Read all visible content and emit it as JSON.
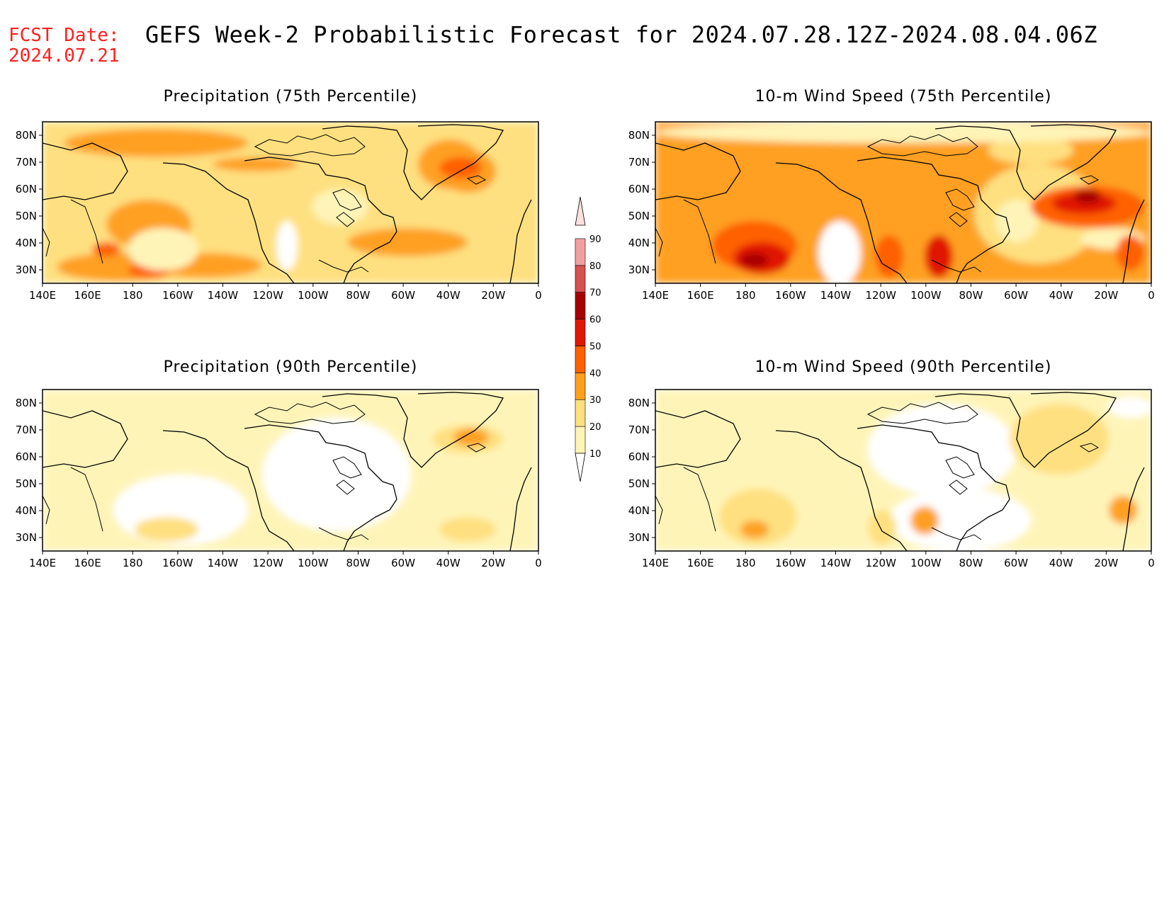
{
  "header": {
    "fcst_label": "FCST Date:",
    "fcst_date": "2024.07.21",
    "title": "GEFS Week-2 Probabilistic Forecast for 2024.07.28.12Z-2024.08.04.06Z"
  },
  "map_axes": {
    "lon_labels": [
      "140E",
      "160E",
      "180",
      "160W",
      "140W",
      "120W",
      "100W",
      "80W",
      "60W",
      "40W",
      "20W",
      "0"
    ],
    "lat_labels": [
      "30N",
      "40N",
      "50N",
      "60N",
      "70N",
      "80N"
    ]
  },
  "panels": [
    {
      "id": "p75",
      "title": "Precipitation (75th Percentile)"
    },
    {
      "id": "w75",
      "title": "10-m Wind Speed (75th Percentile)"
    },
    {
      "id": "p90",
      "title": "Precipitation (90th Percentile)"
    },
    {
      "id": "w90",
      "title": "10-m Wind Speed (90th Percentile)"
    }
  ],
  "colorbar": {
    "levels": [
      "10",
      "20",
      "30",
      "40",
      "50",
      "60",
      "70",
      "80",
      "90"
    ],
    "colors": [
      "#fff4b8",
      "#ffe080",
      "#ffa020",
      "#ff6000",
      "#e01800",
      "#a80000",
      "#d85050",
      "#f0a0a0",
      "#fce0e0"
    ]
  }
}
